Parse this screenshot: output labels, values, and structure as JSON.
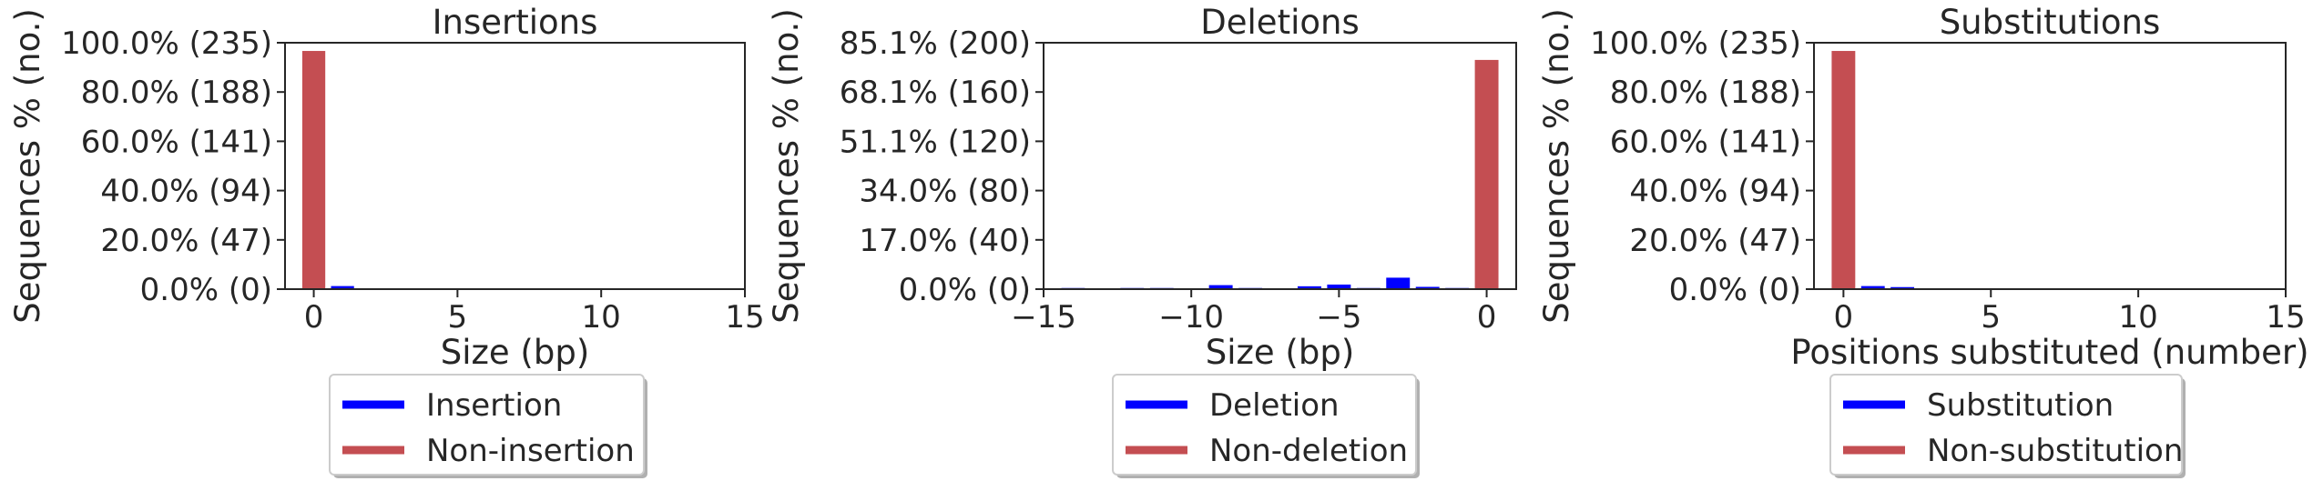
{
  "colors": {
    "primary": "#0000ff",
    "non": "#c44e52",
    "axis": "#262626"
  },
  "chart_data": [
    {
      "type": "bar",
      "title": "Insertions",
      "xlabel": "Size (bp)",
      "ylabel": "Sequences % (no.)",
      "xlim": [
        -1,
        15
      ],
      "ylim": [
        0,
        240
      ],
      "xticks": [
        "0",
        "5",
        "10",
        "15"
      ],
      "yticks": [
        "0.0% (0)",
        "20.0% (47)",
        "40.0% (94)",
        "60.0% (141)",
        "80.0% (188)",
        "100.0% (235)"
      ],
      "series": [
        {
          "name": "Insertion",
          "x": [
            1
          ],
          "values": [
            3
          ]
        },
        {
          "name": "Non-insertion",
          "x": [
            0
          ],
          "values": [
            232
          ]
        }
      ],
      "legend": {
        "position": "below",
        "entries": [
          "Insertion",
          "Non-insertion"
        ]
      }
    },
    {
      "type": "bar",
      "title": "Deletions",
      "xlabel": "Size (bp)",
      "ylabel": "Sequences % (no.)",
      "xlim": [
        -15,
        1
      ],
      "ylim": [
        0,
        215
      ],
      "xticks": [
        "−15",
        "−10",
        "−5",
        "0"
      ],
      "yticks": [
        "0.0% (0)",
        "17.0% (40)",
        "34.0% (80)",
        "51.1% (120)",
        "68.1% (160)",
        "85.1% (200)"
      ],
      "series": [
        {
          "name": "Deletion",
          "x": [
            -14,
            -13,
            -12,
            -11,
            -10,
            -9,
            -8,
            -7,
            -6,
            -5,
            -4,
            -3,
            -2,
            -1
          ],
          "values": [
            1,
            0.5,
            1,
            1,
            0.5,
            3.5,
            1,
            0.5,
            2.5,
            4,
            1,
            10,
            2,
            1
          ]
        },
        {
          "name": "Non-deletion",
          "x": [
            0
          ],
          "values": [
            200
          ]
        }
      ],
      "legend": {
        "position": "below",
        "entries": [
          "Deletion",
          "Non-deletion"
        ]
      }
    },
    {
      "type": "bar",
      "title": "Substitutions",
      "xlabel": "Positions substituted (number)",
      "ylabel": "Sequences % (no.)",
      "xlim": [
        -1,
        15
      ],
      "ylim": [
        0,
        240
      ],
      "xticks": [
        "0",
        "5",
        "10",
        "15"
      ],
      "yticks": [
        "0.0% (0)",
        "20.0% (47)",
        "40.0% (94)",
        "60.0% (141)",
        "80.0% (188)",
        "100.0% (235)"
      ],
      "series": [
        {
          "name": "Substitution",
          "x": [
            1,
            2
          ],
          "values": [
            3,
            2
          ]
        },
        {
          "name": "Non-substitution",
          "x": [
            0
          ],
          "values": [
            232
          ]
        }
      ],
      "legend": {
        "position": "below",
        "entries": [
          "Substitution",
          "Non-substitution"
        ]
      }
    }
  ]
}
